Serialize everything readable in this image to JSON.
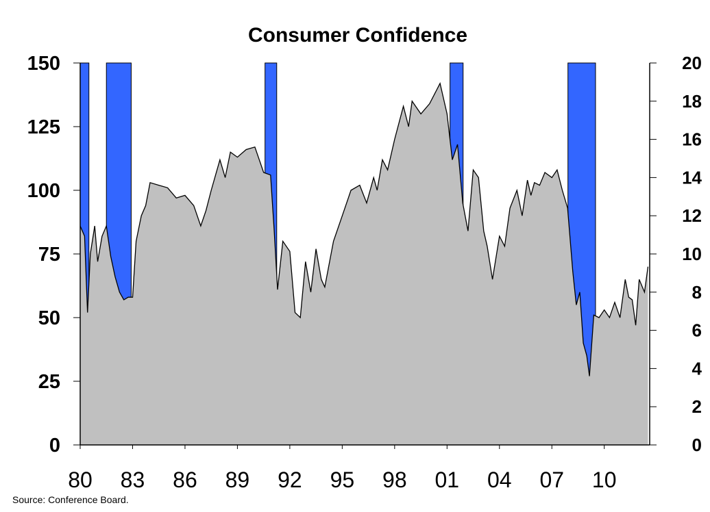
{
  "chart_data": {
    "type": "area",
    "title": "Consumer Confidence",
    "source_note": "Source: Conference Board.",
    "series": [
      {
        "x": [
          1980.0,
          1980.25,
          1980.42,
          1980.58,
          1980.83,
          1981.0,
          1981.25,
          1981.5,
          1981.75,
          1982.0,
          1982.25,
          1982.5,
          1982.75,
          1983.0,
          1983.2,
          1983.5,
          1983.75,
          1984.0,
          1984.5,
          1985.0,
          1985.5,
          1986.0,
          1986.5,
          1986.9,
          1987.2,
          1987.5,
          1988.0,
          1988.3,
          1988.6,
          1989.0,
          1989.5,
          1990.0,
          1990.5,
          1990.9,
          1991.1,
          1991.3,
          1991.6,
          1992.0,
          1992.3,
          1992.6,
          1992.9,
          1993.2,
          1993.5,
          1993.8,
          1994.0,
          1994.5,
          1995.0,
          1995.5,
          1996.0,
          1996.4,
          1996.8,
          1997.0,
          1997.3,
          1997.6,
          1998.0,
          1998.5,
          1998.8,
          1999.0,
          1999.5,
          2000.0,
          2000.3,
          2000.6,
          2001.0,
          2001.3,
          2001.6,
          2001.9,
          2002.2,
          2002.5,
          2002.8,
          2003.1,
          2003.3,
          2003.6,
          2004.0,
          2004.3,
          2004.6,
          2005.0,
          2005.3,
          2005.6,
          2005.8,
          2006.0,
          2006.3,
          2006.6,
          2007.0,
          2007.3,
          2007.6,
          2007.9,
          2008.2,
          2008.4,
          2008.6,
          2008.8,
          2009.0,
          2009.15,
          2009.4,
          2009.7,
          2010.0,
          2010.3,
          2010.6,
          2010.9,
          2011.2,
          2011.4,
          2011.6,
          2011.8,
          2012.0,
          2012.3,
          2012.5
        ],
        "y": [
          86,
          82,
          52,
          75,
          86,
          72,
          82,
          86,
          74,
          66,
          60,
          57,
          58,
          58,
          80,
          90,
          94,
          103,
          102,
          101,
          97,
          98,
          94,
          86,
          92,
          100,
          112,
          105,
          115,
          113,
          116,
          117,
          107,
          106,
          85,
          61,
          80,
          76,
          52,
          50,
          72,
          60,
          77,
          65,
          62,
          80,
          90,
          100,
          102,
          95,
          105,
          100,
          112,
          108,
          120,
          133,
          125,
          135,
          130,
          134,
          138,
          142,
          130,
          112,
          118,
          95,
          84,
          108,
          105,
          84,
          78,
          65,
          82,
          78,
          93,
          100,
          90,
          104,
          98,
          103,
          102,
          107,
          105,
          108,
          100,
          93,
          68,
          55,
          60,
          40,
          35,
          27,
          51,
          50,
          53,
          50,
          56,
          50,
          65,
          58,
          57,
          47,
          65,
          60,
          70
        ]
      }
    ],
    "recessions": [
      [
        1980.0,
        1980.5
      ],
      [
        1981.5,
        1982.92
      ],
      [
        1990.58,
        1991.25
      ],
      [
        2001.17,
        2001.92
      ],
      [
        2007.92,
        2009.5
      ]
    ],
    "xlim": [
      1980,
      2012.6
    ],
    "ylim": [
      0,
      150
    ],
    "y2lim": [
      0,
      20
    ],
    "x_ticks": [
      {
        "v": 1980,
        "label": "80"
      },
      {
        "v": 1983,
        "label": "83"
      },
      {
        "v": 1986,
        "label": "86"
      },
      {
        "v": 1989,
        "label": "89"
      },
      {
        "v": 1992,
        "label": "92"
      },
      {
        "v": 1995,
        "label": "95"
      },
      {
        "v": 1998,
        "label": "98"
      },
      {
        "v": 2001,
        "label": "01"
      },
      {
        "v": 2004,
        "label": "04"
      },
      {
        "v": 2007,
        "label": "07"
      },
      {
        "v": 2010,
        "label": "10"
      }
    ],
    "y_ticks": [
      0,
      25,
      50,
      75,
      100,
      125,
      150
    ],
    "y2_ticks": [
      0,
      2,
      4,
      6,
      8,
      10,
      12,
      14,
      16,
      18,
      20
    ],
    "colors": {
      "area": "#c0c0c0",
      "line": "#000000",
      "recession": "#3366ff"
    }
  }
}
